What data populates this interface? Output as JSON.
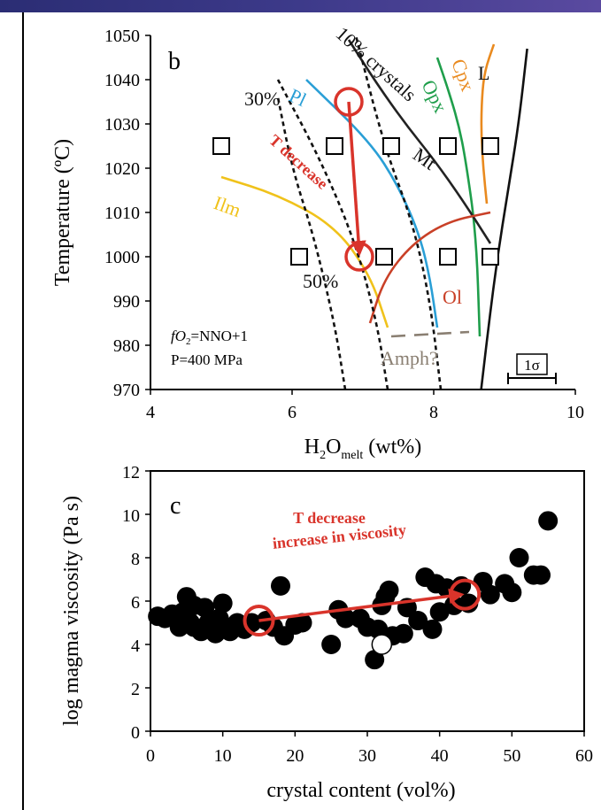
{
  "chart_data": [
    {
      "panel": "b",
      "type": "line",
      "xlabel_main": "H",
      "xlabel_sub1": "2",
      "xlabel_mid": "O",
      "xlabel_sub2": "melt",
      "xlabel_end": " (wt%)",
      "ylabel": "Temperature (ºC)",
      "xlim": [
        4,
        10
      ],
      "ylim": [
        970,
        1050
      ],
      "xticks": [
        "4",
        "6",
        "8",
        "10"
      ],
      "yticks": [
        "970",
        "980",
        "990",
        "1000",
        "1010",
        "1020",
        "1030",
        "1040",
        "1050"
      ],
      "series": [
        {
          "name": "L",
          "color": "#111111",
          "x": [
            8.67,
            8.78,
            8.9,
            9.05,
            9.2,
            9.32
          ],
          "y": [
            970,
            985,
            1000,
            1015,
            1030,
            1047
          ]
        },
        {
          "name": "Cpx",
          "color": "#e98a1f",
          "x": [
            8.75,
            8.7,
            8.67,
            8.68,
            8.72,
            8.85
          ],
          "y": [
            1012,
            1020,
            1028,
            1036,
            1042,
            1048
          ]
        },
        {
          "name": "Opx",
          "color": "#1f9e4b",
          "x": [
            8.65,
            8.6,
            8.45,
            8.35,
            8.2,
            8.05
          ],
          "y": [
            982,
            1005,
            1022,
            1030,
            1038,
            1045
          ]
        },
        {
          "name": "Mt",
          "color": "#222222",
          "x": [
            8.8,
            8.4,
            8.0,
            7.6,
            7.2,
            6.8
          ],
          "y": [
            1003,
            1013,
            1022,
            1030,
            1039,
            1049
          ]
        },
        {
          "name": "Pl",
          "color": "#2a9fd6",
          "x": [
            8.05,
            7.95,
            7.8,
            7.5,
            7.1,
            6.2
          ],
          "y": [
            984,
            995,
            1005,
            1016,
            1026,
            1040
          ]
        },
        {
          "name": "Ilm",
          "color": "#f0c21b",
          "x": [
            5.0,
            5.8,
            6.6,
            7.1,
            7.35
          ],
          "y": [
            1018,
            1014,
            1007,
            996,
            984
          ]
        },
        {
          "name": "Ol",
          "color": "#c94027",
          "x": [
            7.1,
            7.3,
            7.7,
            8.2,
            8.8
          ],
          "y": [
            985,
            995,
            1003,
            1008,
            1010
          ]
        },
        {
          "name": "10% crystals",
          "dashed": true,
          "color": "#111111",
          "x": [
            8.1,
            7.95,
            7.7,
            7.3,
            6.9
          ],
          "y": [
            970,
            990,
            1008,
            1025,
            1050
          ]
        },
        {
          "name": "30%",
          "dashed": true,
          "color": "#111111",
          "x": [
            7.35,
            7.2,
            6.9,
            6.4,
            5.8
          ],
          "y": [
            970,
            985,
            1003,
            1022,
            1040
          ]
        },
        {
          "name": "50%",
          "dashed": true,
          "color": "#111111",
          "x": [
            6.75,
            6.6,
            6.3,
            6.0,
            5.8
          ],
          "y": [
            970,
            985,
            1005,
            1020,
            1036
          ]
        },
        {
          "name": "Amph?",
          "color": "#8a7f72",
          "x": [
            7.4,
            8.5
          ],
          "y": [
            982,
            983
          ]
        }
      ],
      "experiments": [
        {
          "x": 5.0,
          "y": 1025
        },
        {
          "x": 6.6,
          "y": 1025
        },
        {
          "x": 7.4,
          "y": 1025
        },
        {
          "x": 8.2,
          "y": 1025
        },
        {
          "x": 8.8,
          "y": 1025
        },
        {
          "x": 6.1,
          "y": 1000
        },
        {
          "x": 7.3,
          "y": 1000
        },
        {
          "x": 8.2,
          "y": 1000
        },
        {
          "x": 8.8,
          "y": 1000
        }
      ],
      "path": {
        "start": [
          6.8,
          1035
        ],
        "end": [
          6.95,
          1000
        ],
        "color": "#d9342b"
      },
      "labels": {
        "panel": "b",
        "pct10": "10% crystals",
        "pct30": "30%",
        "pct50": "50%",
        "tdecrease": "T decrease",
        "fo2": "fO",
        "fo2_sub": "2",
        "fo2_rest": "=NNO+1",
        "pressure": "P=400 MPa",
        "sigma": "1σ"
      }
    },
    {
      "panel": "c",
      "type": "scatter",
      "xlabel": "crystal content (vol%)",
      "ylabel": "log magma viscosity (Pa s)",
      "xlim": [
        0,
        60
      ],
      "ylim": [
        0,
        12
      ],
      "xticks": [
        "0",
        "10",
        "20",
        "30",
        "40",
        "50",
        "60"
      ],
      "yticks": [
        "0",
        "2",
        "4",
        "6",
        "8",
        "10",
        "12"
      ],
      "points": [
        {
          "x": 1,
          "y": 5.3
        },
        {
          "x": 2,
          "y": 5.2
        },
        {
          "x": 3,
          "y": 5.4
        },
        {
          "x": 4,
          "y": 4.8
        },
        {
          "x": 4.5,
          "y": 5.5
        },
        {
          "x": 5,
          "y": 6.2
        },
        {
          "x": 5.5,
          "y": 5.0
        },
        {
          "x": 6,
          "y": 4.8
        },
        {
          "x": 6,
          "y": 5.8
        },
        {
          "x": 7,
          "y": 4.6
        },
        {
          "x": 7.5,
          "y": 5.7
        },
        {
          "x": 8,
          "y": 5.0
        },
        {
          "x": 9,
          "y": 4.5
        },
        {
          "x": 9.5,
          "y": 5.2
        },
        {
          "x": 10,
          "y": 5.9
        },
        {
          "x": 11,
          "y": 4.6
        },
        {
          "x": 12,
          "y": 5.0
        },
        {
          "x": 13,
          "y": 4.7
        },
        {
          "x": 14,
          "y": 5.0
        },
        {
          "x": 16,
          "y": 5.1
        },
        {
          "x": 17,
          "y": 4.8
        },
        {
          "x": 18,
          "y": 6.7
        },
        {
          "x": 18.5,
          "y": 4.4
        },
        {
          "x": 20,
          "y": 4.9
        },
        {
          "x": 21,
          "y": 5.0
        },
        {
          "x": 25,
          "y": 4.0
        },
        {
          "x": 26,
          "y": 5.6
        },
        {
          "x": 27,
          "y": 5.2
        },
        {
          "x": 29,
          "y": 5.2
        },
        {
          "x": 30,
          "y": 4.8
        },
        {
          "x": 31,
          "y": 3.3
        },
        {
          "x": 31.5,
          "y": 4.7
        },
        {
          "x": 32,
          "y": 5.8
        },
        {
          "x": 32.5,
          "y": 6.2
        },
        {
          "x": 33,
          "y": 6.5
        },
        {
          "x": 33.5,
          "y": 4.4
        },
        {
          "x": 35,
          "y": 4.5
        },
        {
          "x": 35.5,
          "y": 5.7
        },
        {
          "x": 37,
          "y": 5.1
        },
        {
          "x": 38,
          "y": 7.1
        },
        {
          "x": 39,
          "y": 4.7
        },
        {
          "x": 39.5,
          "y": 6.8
        },
        {
          "x": 40,
          "y": 5.5
        },
        {
          "x": 41,
          "y": 6.6
        },
        {
          "x": 42,
          "y": 5.8
        },
        {
          "x": 43,
          "y": 6.7
        },
        {
          "x": 44,
          "y": 5.9
        },
        {
          "x": 46,
          "y": 6.9
        },
        {
          "x": 47,
          "y": 6.3
        },
        {
          "x": 49,
          "y": 6.8
        },
        {
          "x": 50,
          "y": 6.4
        },
        {
          "x": 51,
          "y": 8.0
        },
        {
          "x": 53,
          "y": 7.2
        },
        {
          "x": 54,
          "y": 7.2
        },
        {
          "x": 55,
          "y": 9.7
        }
      ],
      "hollow_point": {
        "x": 32,
        "y": 4.0
      },
      "trend": {
        "start": [
          15,
          5.1
        ],
        "end": [
          43.5,
          6.3
        ],
        "color": "#d9342b"
      },
      "labels": {
        "panel": "c",
        "annot1": "T decrease",
        "annot2": "increase in viscosity"
      }
    }
  ]
}
